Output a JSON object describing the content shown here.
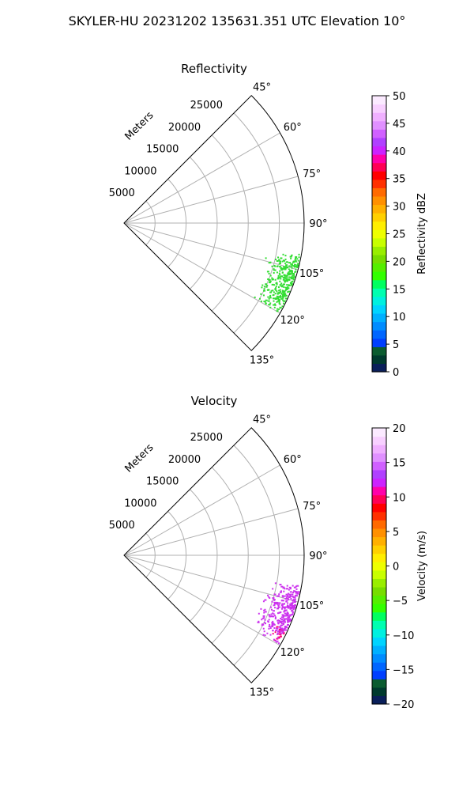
{
  "figure": {
    "suptitle": "SKYLER-HU  20231202  135631.351 UTC Elevation 10°"
  },
  "chart_data": [
    {
      "type": "polar-sector",
      "title": "Reflectivity",
      "theta_range_deg": [
        45,
        135
      ],
      "theta_ticks_deg": [
        45,
        60,
        75,
        90,
        105,
        120,
        135
      ],
      "theta_tick_labels": [
        "45°",
        "60°",
        "75°",
        "90°",
        "105°",
        "120°",
        "135°"
      ],
      "r_max_m": 29000,
      "r_ticks_m": [
        5000,
        10000,
        15000,
        20000,
        25000
      ],
      "r_tick_labels": [
        "5000",
        "10000",
        "15000",
        "20000",
        "25000"
      ],
      "r_axis_label": "Meters",
      "grid": true,
      "echo_region": {
        "theta_deg": [
          100,
          120
        ],
        "r_m": [
          23000,
          29000
        ],
        "value_range": [
          15,
          20
        ],
        "color": "#33dd33"
      },
      "colorbar": {
        "label": "Reflectivity dBZ",
        "vmin": 0,
        "vmax": 50,
        "ticks": [
          0,
          5,
          10,
          15,
          20,
          25,
          30,
          35,
          40,
          45,
          50
        ],
        "tick_labels": [
          "0",
          "5",
          "10",
          "15",
          "20",
          "25",
          "30",
          "35",
          "40",
          "45",
          "50"
        ],
        "colors": [
          "#0a1f5a",
          "#003a2e",
          "#0b5c30",
          "#003fff",
          "#0066ff",
          "#008cff",
          "#00b0ff",
          "#00d4ff",
          "#00f0e0",
          "#00ffb0",
          "#00ff60",
          "#33ff00",
          "#55ee00",
          "#77dd00",
          "#99ee00",
          "#c8ff00",
          "#eeff00",
          "#ffee00",
          "#ffd000",
          "#ffb000",
          "#ff9000",
          "#ff6a00",
          "#ff3000",
          "#ff0000",
          "#ff0055",
          "#ff00aa",
          "#cc22ff",
          "#b040ff",
          "#d060ff",
          "#e090ff",
          "#f0b0ff",
          "#f8d0ff",
          "#fbeaff"
        ]
      }
    },
    {
      "type": "polar-sector",
      "title": "Velocity",
      "theta_range_deg": [
        45,
        135
      ],
      "theta_ticks_deg": [
        45,
        60,
        75,
        90,
        105,
        120,
        135
      ],
      "theta_tick_labels": [
        "45°",
        "60°",
        "75°",
        "90°",
        "105°",
        "120°",
        "135°"
      ],
      "r_max_m": 29000,
      "r_ticks_m": [
        5000,
        10000,
        15000,
        20000,
        25000
      ],
      "r_tick_labels": [
        "5000",
        "10000",
        "15000",
        "20000",
        "25000"
      ],
      "r_axis_label": "Meters",
      "grid": true,
      "echo_region": {
        "theta_deg": [
          100,
          120
        ],
        "r_m": [
          23000,
          29000
        ],
        "value_range": [
          12,
          16
        ],
        "color": "#cc33ee"
      },
      "colorbar": {
        "label": "Velocity (m/s)",
        "vmin": -20,
        "vmax": 20,
        "ticks": [
          -20,
          -15,
          -10,
          -5,
          0,
          5,
          10,
          15,
          20
        ],
        "tick_labels": [
          "−20",
          "−15",
          "−10",
          "−5",
          "0",
          "5",
          "10",
          "15",
          "20"
        ],
        "colors": [
          "#0a1f5a",
          "#003a2e",
          "#0b5c30",
          "#003fff",
          "#0066ff",
          "#008cff",
          "#00b0ff",
          "#00d4ff",
          "#00f0e0",
          "#00ffb0",
          "#00ff60",
          "#33ff00",
          "#55ee00",
          "#77dd00",
          "#99ee00",
          "#c8ff00",
          "#eeff00",
          "#ffee00",
          "#ffd000",
          "#ffb000",
          "#ff9000",
          "#ff6a00",
          "#ff3000",
          "#ff0000",
          "#ff0055",
          "#ff00aa",
          "#cc22ff",
          "#b040ff",
          "#d060ff",
          "#e090ff",
          "#f0b0ff",
          "#f8d0ff",
          "#fbeaff"
        ]
      }
    }
  ]
}
